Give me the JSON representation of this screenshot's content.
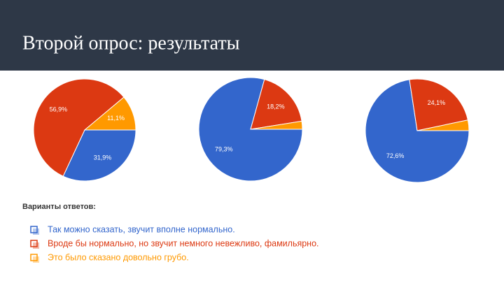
{
  "header": {
    "title": "Второй опрос: результаты"
  },
  "legend": {
    "title": "Варианты ответов:",
    "items": [
      {
        "name": "Так можно сказать, звучит вполне нормально.",
        "color": "#3366cc"
      },
      {
        "name": "Вроде бы нормально, но звучит немного невежливо, фамильярно.",
        "color": "#dc3912"
      },
      {
        "name": "Это было сказано довольно грубо.",
        "color": "#ff9900"
      }
    ]
  },
  "chart_data": [
    {
      "type": "pie",
      "values": [
        31.9,
        56.9,
        11.1
      ],
      "value_labels": [
        "31,9%",
        "56,9%",
        "11,1%"
      ]
    },
    {
      "type": "pie",
      "values": [
        79.3,
        18.2,
        2.5
      ],
      "value_labels": [
        "79,3%",
        "18,2%",
        null
      ]
    },
    {
      "type": "pie",
      "values": [
        72.6,
        24.1,
        3.3
      ],
      "value_labels": [
        "72,6%",
        "24,1%",
        null
      ]
    }
  ]
}
